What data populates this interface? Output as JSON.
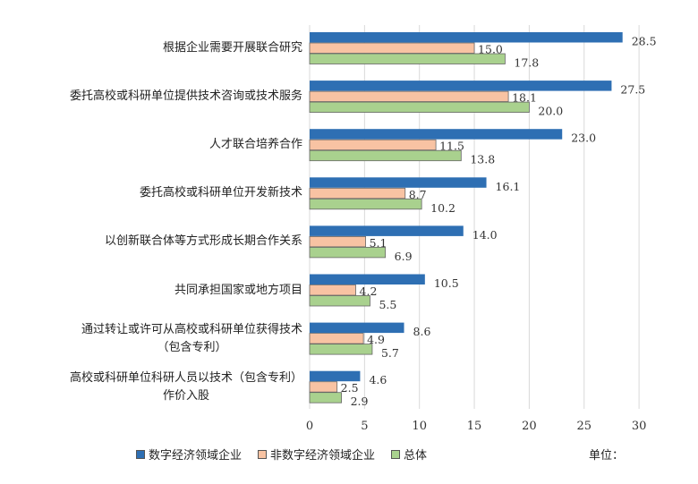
{
  "chart_data": {
    "type": "bar",
    "orientation": "horizontal",
    "categories": [
      [
        "根据企业需要开展联合研究"
      ],
      [
        "委托高校或科研单位提供技术咨询或技术服务"
      ],
      [
        "人才联合培养合作"
      ],
      [
        "委托高校或科研单位开发新技术"
      ],
      [
        "以创新联合体等方式形成长期合作关系"
      ],
      [
        "共同承担国家或地方项目"
      ],
      [
        "通过转让或许可从高校或科研单位获得技术",
        "（包含专利）"
      ],
      [
        "高校或科研单位科研人员以技术（包含专利）",
        "作价入股"
      ]
    ],
    "series": [
      {
        "name": "数字经济领域企业",
        "color": "#2e6fb3",
        "values": [
          28.5,
          27.5,
          23.0,
          16.1,
          14.0,
          10.5,
          8.6,
          4.6
        ],
        "labels": [
          "28.5",
          "27.5",
          "23.0",
          "16.1",
          "14.0",
          "10.5",
          "8.6",
          "4.6"
        ]
      },
      {
        "name": "非数字经济领域企业",
        "color": "#f8c3a3",
        "values": [
          15.0,
          18.1,
          11.5,
          8.7,
          5.1,
          4.2,
          4.9,
          2.5
        ],
        "labels": [
          "15.0",
          "18.1",
          "11.5",
          "8.7",
          "5.1",
          "4.2",
          "4.9",
          "2.5"
        ]
      },
      {
        "name": "总体",
        "color": "#a9d18e",
        "values": [
          17.8,
          20.0,
          13.8,
          10.2,
          6.9,
          5.5,
          5.7,
          2.9
        ],
        "labels": [
          "17.8",
          "20.0",
          "13.8",
          "10.2",
          "6.9",
          "5.5",
          "5.7",
          "2.9"
        ]
      }
    ],
    "xlim": [
      0,
      30
    ],
    "xticks": [
      "0",
      "5",
      "10",
      "15",
      "20",
      "25",
      "30"
    ],
    "grid": true,
    "legend": "bottom",
    "unit_label": "单位："
  }
}
